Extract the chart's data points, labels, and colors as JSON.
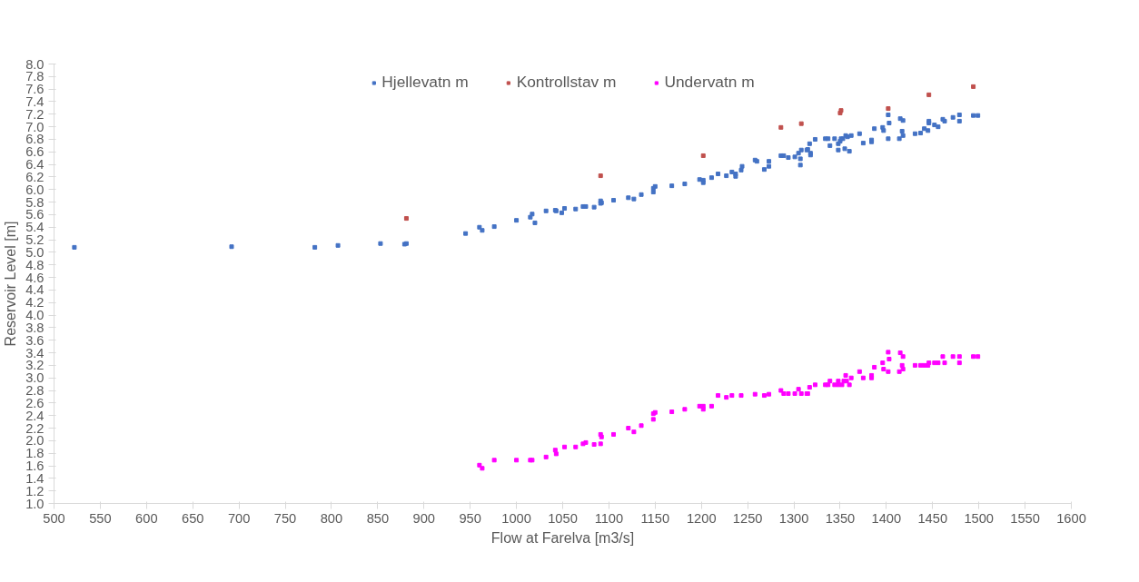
{
  "chart_data": {
    "type": "scatter",
    "xlabel": "Flow at Farelva [m3/s]",
    "ylabel": "Reservoir Level [m]",
    "xlim": [
      500,
      1600
    ],
    "xticks": [
      500,
      550,
      600,
      650,
      700,
      750,
      800,
      850,
      900,
      950,
      1000,
      1050,
      1100,
      1150,
      1200,
      1250,
      1300,
      1350,
      1400,
      1450,
      1500,
      1550,
      1600
    ],
    "ylim": [
      1.0,
      8.0
    ],
    "yticks": [
      {
        "value": 1.0,
        "label": "1.0"
      },
      {
        "value": 1.2,
        "label": "1.2"
      },
      {
        "value": 1.4,
        "label": "1.4"
      },
      {
        "value": 1.6,
        "label": "1.6"
      },
      {
        "value": 1.8,
        "label": "1.8"
      },
      {
        "value": 2.0,
        "label": "2.0"
      },
      {
        "value": 2.2,
        "label": "2.2"
      },
      {
        "value": 2.4,
        "label": "2.4"
      },
      {
        "value": 2.6,
        "label": "2.6"
      },
      {
        "value": 2.8,
        "label": "2.8"
      },
      {
        "value": 3.0,
        "label": "3.0"
      },
      {
        "value": 3.2,
        "label": "3.2"
      },
      {
        "value": 3.4,
        "label": "3.4"
      },
      {
        "value": 3.6,
        "label": "3.6"
      },
      {
        "value": 3.8,
        "label": "3.8"
      },
      {
        "value": 4.0,
        "label": "4.0"
      },
      {
        "value": 4.2,
        "label": "4.2"
      },
      {
        "value": 4.4,
        "label": "4.4"
      },
      {
        "value": 4.6,
        "label": "4.6"
      },
      {
        "value": 4.8,
        "label": "4.8"
      },
      {
        "value": 5.0,
        "label": "5.0"
      },
      {
        "value": 5.2,
        "label": "5.2"
      },
      {
        "value": 5.4,
        "label": "5.4"
      },
      {
        "value": 5.6,
        "label": "5.6"
      },
      {
        "value": 5.8,
        "label": "5.8"
      },
      {
        "value": 6.0,
        "label": "6.0"
      },
      {
        "value": 6.2,
        "label": "6.2"
      },
      {
        "value": 6.4,
        "label": "6.4"
      },
      {
        "value": 6.6,
        "label": "6.6"
      },
      {
        "value": 6.8,
        "label": "6.8"
      },
      {
        "value": 7.0,
        "label": "7.0"
      },
      {
        "value": 7.2,
        "label": "7.2"
      },
      {
        "value": 7.4,
        "label": "7.4"
      },
      {
        "value": 7.6,
        "label": "7.6"
      },
      {
        "value": 7.8,
        "label": "7.8"
      },
      {
        "value": 8.0,
        "label": "8.0"
      }
    ],
    "grid": false,
    "legend": "top",
    "marker": "square",
    "series": [
      {
        "name": "Hjellevatn m",
        "color": "#4472c4",
        "x": [
          522,
          692,
          782,
          807,
          853,
          879,
          881,
          945,
          960,
          963,
          976,
          1000,
          1015,
          1017,
          1020,
          1032,
          1042,
          1043,
          1049,
          1052,
          1064,
          1072,
          1075,
          1084,
          1091,
          1091,
          1092,
          1105,
          1121,
          1127,
          1135,
          1148,
          1148,
          1150,
          1168,
          1182,
          1198,
          1202,
          1202,
          1211,
          1218,
          1227,
          1233,
          1237,
          1237,
          1243,
          1244,
          1258,
          1260,
          1268,
          1273,
          1273,
          1286,
          1289,
          1294,
          1301,
          1305,
          1307,
          1307,
          1308,
          1314,
          1315,
          1317,
          1318,
          1318,
          1323,
          1334,
          1337,
          1339,
          1344,
          1348,
          1348,
          1350,
          1351,
          1353,
          1355,
          1356,
          1358,
          1360,
          1362,
          1371,
          1375,
          1384,
          1384,
          1387,
          1396,
          1397,
          1402,
          1402,
          1403,
          1414,
          1415,
          1417,
          1418,
          1418,
          1431,
          1437,
          1441,
          1445,
          1446,
          1446,
          1452,
          1456,
          1461,
          1463,
          1472,
          1479,
          1479,
          1494,
          1499
        ],
        "values": [
          5.08,
          5.09,
          5.08,
          5.11,
          5.14,
          5.13,
          5.14,
          5.3,
          5.4,
          5.35,
          5.41,
          5.51,
          5.56,
          5.61,
          5.47,
          5.66,
          5.67,
          5.66,
          5.63,
          5.7,
          5.69,
          5.73,
          5.73,
          5.72,
          5.82,
          5.78,
          5.79,
          5.83,
          5.87,
          5.85,
          5.92,
          6.02,
          5.96,
          6.05,
          6.06,
          6.09,
          6.16,
          6.15,
          6.11,
          6.19,
          6.25,
          6.22,
          6.28,
          6.25,
          6.21,
          6.31,
          6.37,
          6.47,
          6.45,
          6.32,
          6.45,
          6.37,
          6.54,
          6.54,
          6.51,
          6.52,
          6.58,
          6.39,
          6.49,
          6.63,
          6.63,
          6.64,
          6.73,
          6.58,
          6.55,
          6.8,
          6.81,
          6.81,
          6.7,
          6.81,
          6.73,
          6.63,
          6.77,
          6.81,
          6.81,
          6.65,
          6.86,
          6.84,
          6.61,
          6.86,
          6.89,
          6.74,
          6.79,
          6.76,
          6.97,
          6.99,
          6.94,
          7.19,
          6.81,
          7.06,
          6.81,
          7.13,
          6.93,
          6.86,
          7.1,
          6.89,
          6.9,
          6.97,
          6.94,
          7.09,
          7.06,
          7.03,
          7.0,
          7.12,
          7.09,
          7.15,
          7.19,
          7.09,
          7.18,
          7.18
        ]
      },
      {
        "name": "Kontrollstav m",
        "color": "#c0504d",
        "x": [
          881,
          1091,
          1202,
          1286,
          1308,
          1350,
          1351,
          1402,
          1446,
          1494
        ],
        "values": [
          5.54,
          6.22,
          6.54,
          6.99,
          7.05,
          7.22,
          7.26,
          7.29,
          7.51,
          7.64
        ]
      },
      {
        "name": "Undervatn m",
        "color": "#ff00ff",
        "x": [
          960,
          963,
          976,
          1000,
          1015,
          1017,
          1032,
          1042,
          1043,
          1052,
          1064,
          1072,
          1075,
          1084,
          1091,
          1092,
          1091,
          1105,
          1121,
          1127,
          1135,
          1148,
          1150,
          1148,
          1168,
          1182,
          1198,
          1202,
          1202,
          1211,
          1218,
          1227,
          1233,
          1243,
          1258,
          1268,
          1273,
          1286,
          1289,
          1294,
          1301,
          1305,
          1308,
          1314,
          1315,
          1317,
          1323,
          1334,
          1337,
          1339,
          1344,
          1348,
          1352,
          1348,
          1354,
          1357,
          1356,
          1360,
          1362,
          1371,
          1375,
          1384,
          1384,
          1387,
          1396,
          1397,
          1402,
          1403,
          1402,
          1414,
          1415,
          1418,
          1417,
          1418,
          1431,
          1437,
          1441,
          1445,
          1446,
          1452,
          1456,
          1461,
          1463,
          1472,
          1479,
          1479,
          1494,
          1499
        ],
        "values": [
          1.61,
          1.56,
          1.69,
          1.69,
          1.69,
          1.69,
          1.74,
          1.85,
          1.79,
          1.9,
          1.9,
          1.95,
          1.97,
          1.94,
          2.1,
          2.06,
          1.95,
          2.1,
          2.2,
          2.14,
          2.24,
          2.43,
          2.45,
          2.34,
          2.46,
          2.5,
          2.55,
          2.55,
          2.5,
          2.55,
          2.72,
          2.69,
          2.72,
          2.72,
          2.74,
          2.72,
          2.74,
          2.8,
          2.75,
          2.75,
          2.75,
          2.82,
          2.75,
          2.75,
          2.75,
          2.85,
          2.89,
          2.89,
          2.89,
          2.95,
          2.89,
          2.89,
          2.89,
          2.95,
          2.95,
          2.95,
          3.04,
          2.89,
          3.0,
          3.1,
          3.0,
          3.04,
          3.0,
          3.17,
          3.24,
          3.14,
          3.41,
          3.3,
          3.1,
          3.1,
          3.4,
          3.34,
          3.2,
          3.14,
          3.2,
          3.2,
          3.2,
          3.2,
          3.24,
          3.24,
          3.24,
          3.34,
          3.24,
          3.34,
          3.34,
          3.24,
          3.34,
          3.34
        ]
      }
    ]
  }
}
